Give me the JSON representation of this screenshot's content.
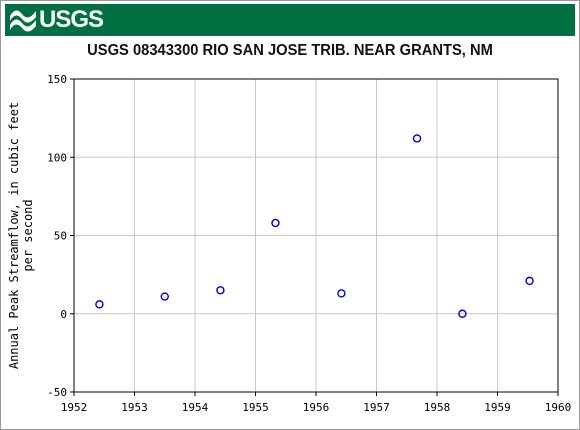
{
  "header": {
    "logo_text": "USGS",
    "logo_icon": "usgs-wave-icon",
    "banner_color": "#006f41"
  },
  "chart_data": {
    "type": "scatter",
    "title": "USGS 08343300 RIO SAN JOSE TRIB. NEAR GRANTS, NM",
    "xlabel": "",
    "ylabel_lines": [
      "Annual Peak Streamflow, in cubic feet",
      "per second"
    ],
    "xlim": [
      1952,
      1960
    ],
    "ylim": [
      -50,
      150
    ],
    "x_ticks": [
      1952,
      1953,
      1954,
      1955,
      1956,
      1957,
      1958,
      1959,
      1960
    ],
    "y_ticks": [
      -50,
      0,
      50,
      100,
      150
    ],
    "grid": true,
    "marker_color": "#0000cc",
    "points": [
      {
        "x": 1952.42,
        "y": 6
      },
      {
        "x": 1953.5,
        "y": 11
      },
      {
        "x": 1954.42,
        "y": 15
      },
      {
        "x": 1955.33,
        "y": 58
      },
      {
        "x": 1956.42,
        "y": 13
      },
      {
        "x": 1957.67,
        "y": 112
      },
      {
        "x": 1958.42,
        "y": 0
      },
      {
        "x": 1959.53,
        "y": 21
      }
    ]
  }
}
